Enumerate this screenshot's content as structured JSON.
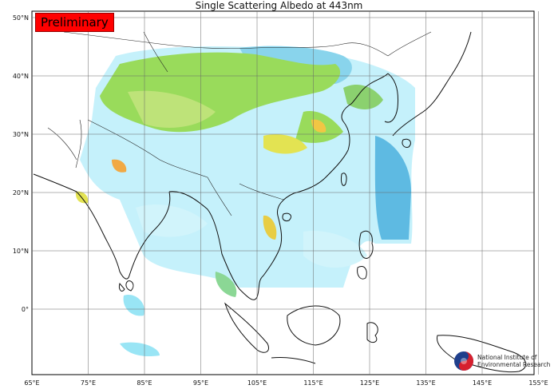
{
  "title": "Single Scattering Albedo at 443nm",
  "badge": "Preliminary",
  "logo": {
    "line1": "National Institute of",
    "line2": "Environmental Research",
    "icon": "korean-taegeuk-icon"
  },
  "axes": {
    "lon_ticks": [
      "65°E",
      "75°E",
      "85°E",
      "95°E",
      "105°E",
      "115°E",
      "125°E",
      "135°E",
      "145°E",
      "155°E"
    ],
    "lat_ticks": [
      "50°N",
      "40°N",
      "30°N",
      "20°N",
      "10°N",
      "0°"
    ]
  },
  "colors": {
    "badge_bg": "#ff0000",
    "cyan": "#8fe3f5",
    "blue": "#36a7d6",
    "green": "#8ed84a",
    "yellow": "#e0e040",
    "orange": "#f0a030"
  }
}
